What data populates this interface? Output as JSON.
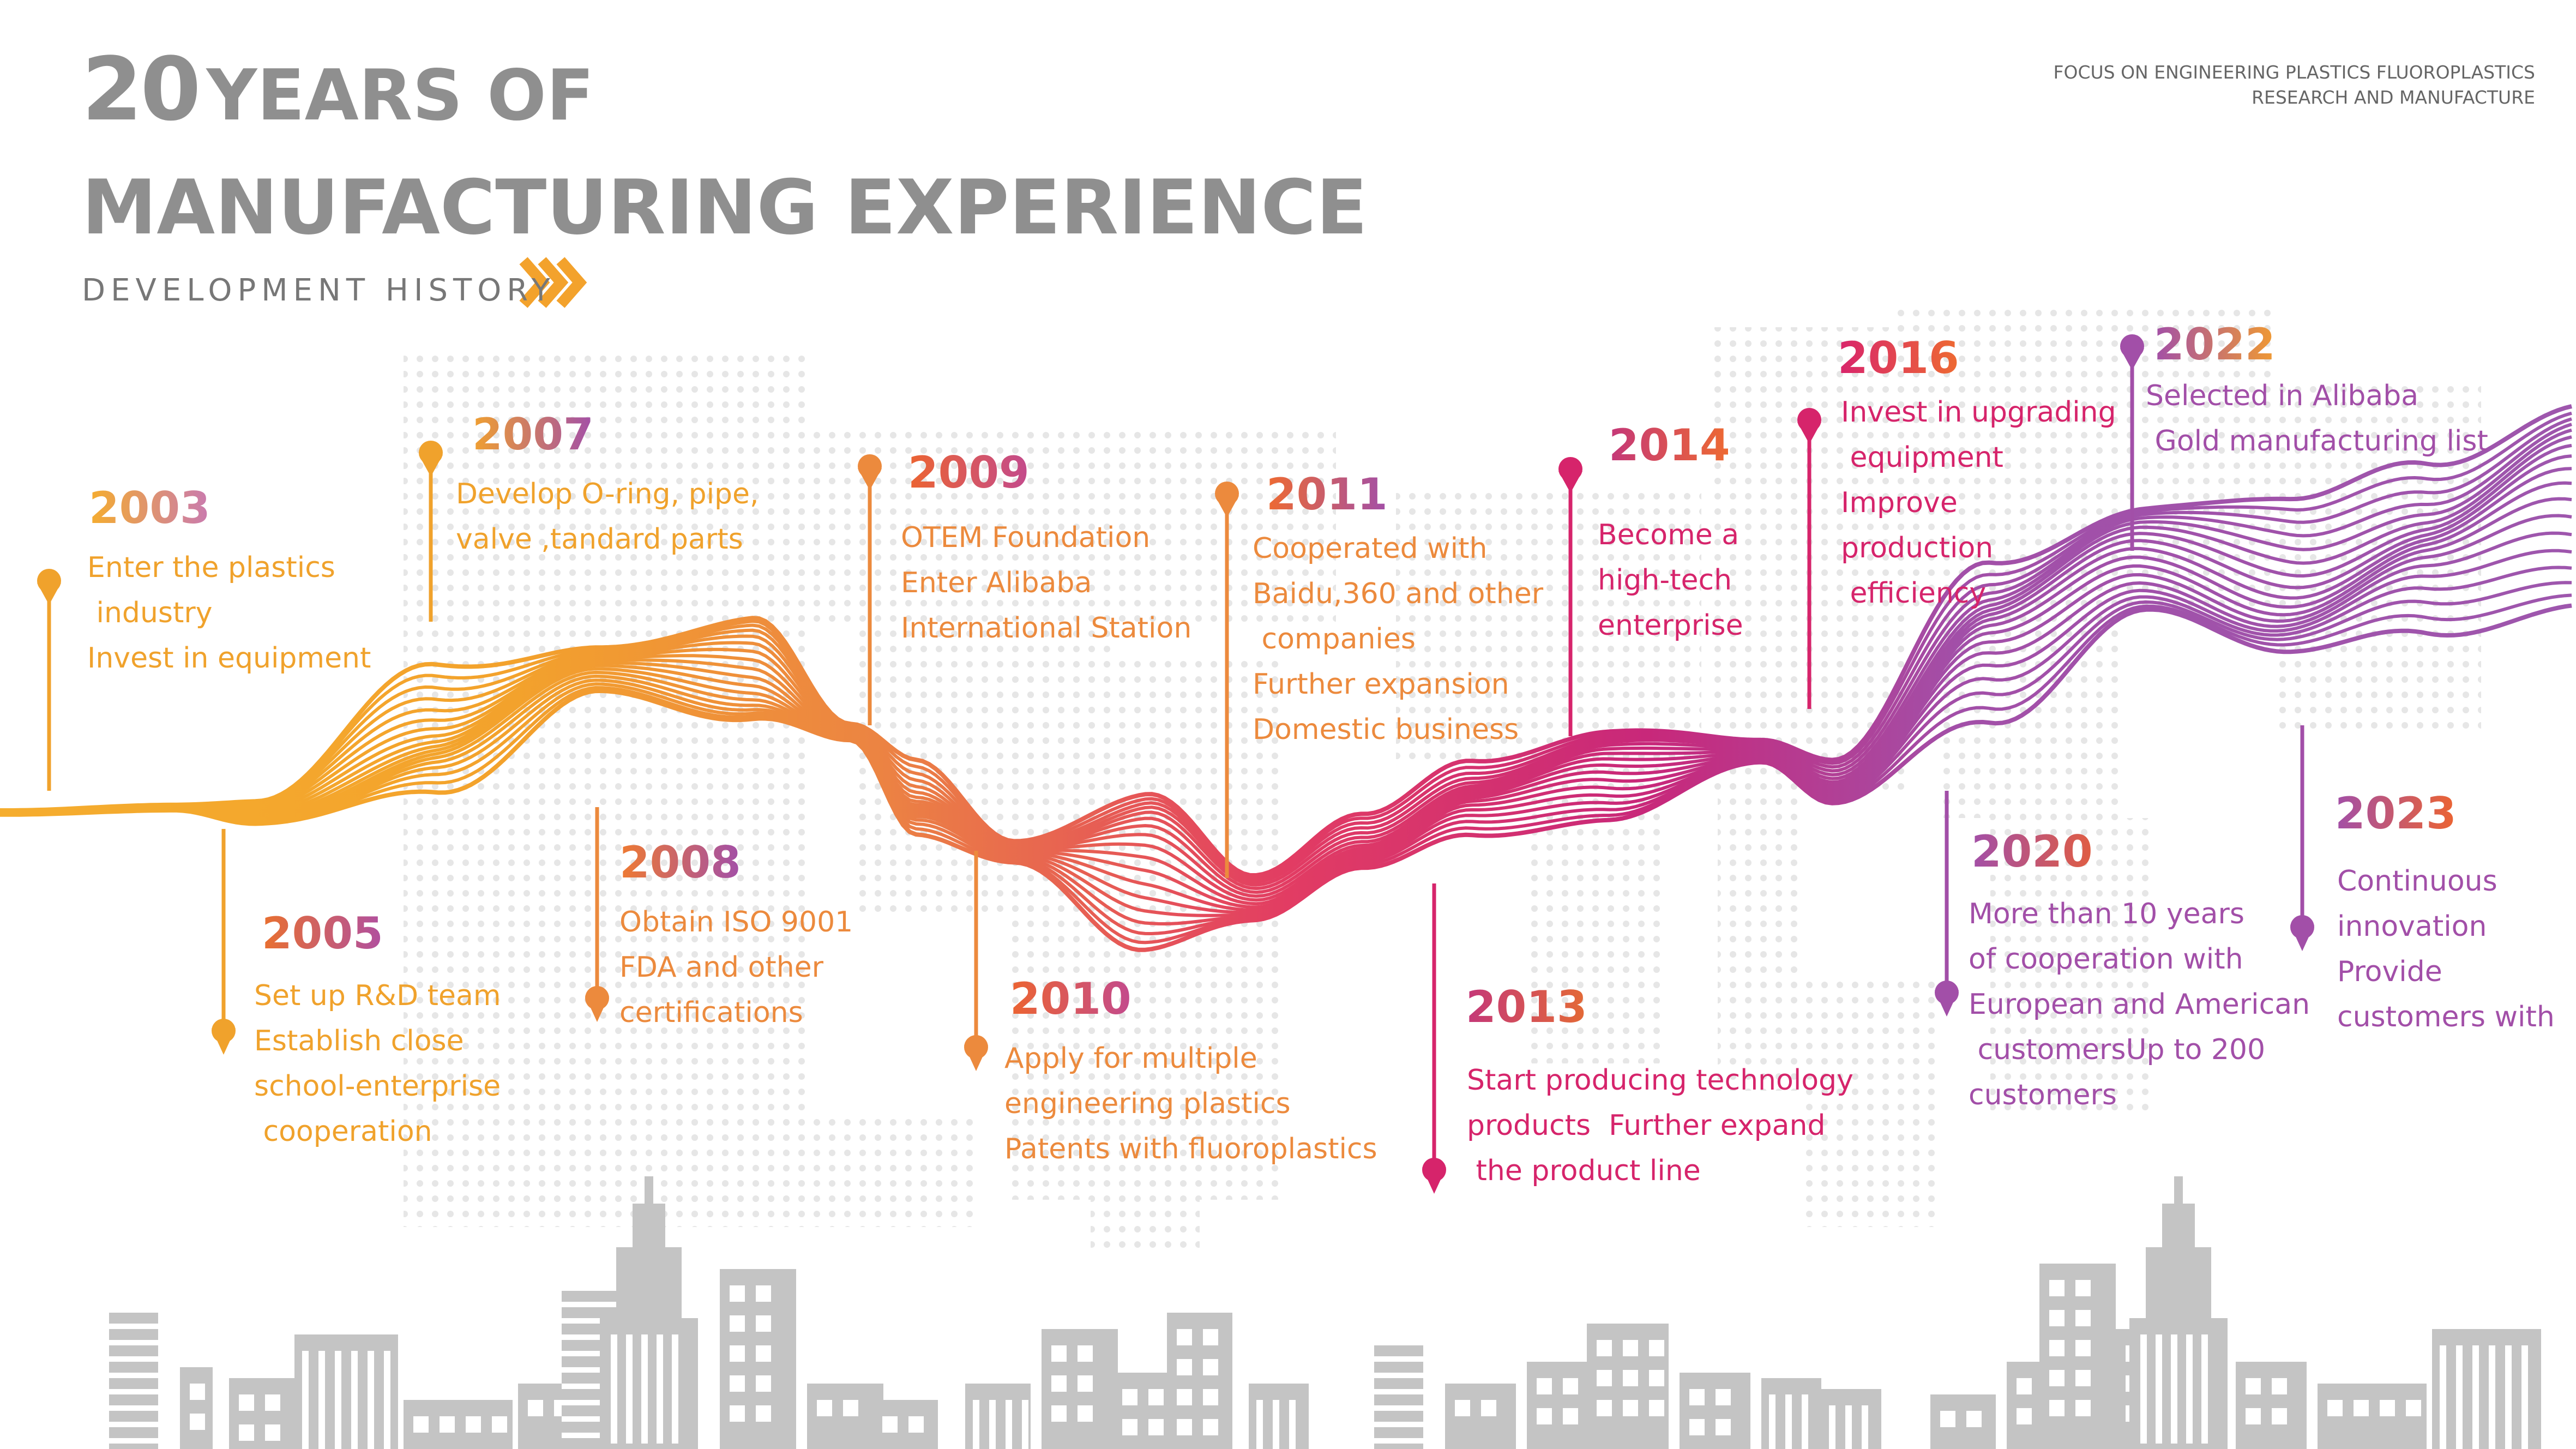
{
  "header": {
    "title_number": "20",
    "title_line1_rest": "YEARS OF",
    "title_line2": "MANUFACTURING EXPERIENCE",
    "subtitle": "DEVELOPMENT HISTORY",
    "tagline_line1": "FOCUS ON ENGINEERING PLASTICS FLUOROPLASTICS",
    "tagline_line2": "RESEARCH AND MANUFACTURE"
  },
  "colors": {
    "title": "#8f8f8f",
    "arrow": "#f3a22c",
    "yellow": "#f5ad2e",
    "orange": "#ec8c42",
    "pink": "#d8246c",
    "purple": "#a24fa8",
    "buildings": "#c4c4c4",
    "dots": "#e6e6e6"
  },
  "timeline": [
    {
      "year": "2003",
      "lines": [
        "Enter the plastics",
        " industry",
        "Invest in equipment"
      ],
      "text_color": "#f0a22c"
    },
    {
      "year": "2005",
      "lines": [
        "Set up R&D team",
        "Establish close",
        "school-enterprise",
        " cooperation"
      ],
      "text_color": "#f0a22c"
    },
    {
      "year": "2007",
      "lines": [
        "Develop O-ring, pipe,",
        "valve ,tandard parts"
      ],
      "text_color": "#f0a22c"
    },
    {
      "year": "2008",
      "lines": [
        "Obtain ISO 9001",
        "FDA and other",
        "certifications"
      ],
      "text_color": "#ec8a3d"
    },
    {
      "year": "2009",
      "lines": [
        "OTEM Foundation",
        "Enter Alibaba",
        "International Station"
      ],
      "text_color": "#ec8a3d"
    },
    {
      "year": "2010",
      "lines": [
        "Apply for multiple",
        "engineering plastics",
        "Patents with fluoroplastics"
      ],
      "text_color": "#ec8a3d"
    },
    {
      "year": "2011",
      "lines": [
        "Cooperated with",
        "Baidu,360 and other",
        " companies",
        "Further expansion",
        "Domestic business"
      ],
      "text_color": "#ec8a3d"
    },
    {
      "year": "2013",
      "lines": [
        "Start producing technology",
        "products  Further expand",
        " the product line"
      ],
      "text_color": "#d6246b"
    },
    {
      "year": "2014",
      "lines": [
        "Become a",
        "high-tech",
        "enterprise"
      ],
      "text_color": "#d6246b"
    },
    {
      "year": "2016",
      "lines": [
        "Invest in upgrading",
        " equipment",
        "Improve",
        "production",
        " efficiency"
      ],
      "text_color": "#d6246b"
    },
    {
      "year": "2020",
      "lines": [
        "More than 10 years",
        "of cooperation with",
        "European and American",
        " customersUp to 200",
        "customers"
      ],
      "text_color": "#a24fa8"
    },
    {
      "year": "2022",
      "lines": [
        "Selected in Alibaba",
        " Gold manufacturing list"
      ],
      "text_color": "#a24fa8"
    },
    {
      "year": "2023",
      "lines": [
        "Continuous",
        "innovation",
        "Provide",
        "customers with"
      ],
      "text_color": "#a24fa8"
    }
  ]
}
